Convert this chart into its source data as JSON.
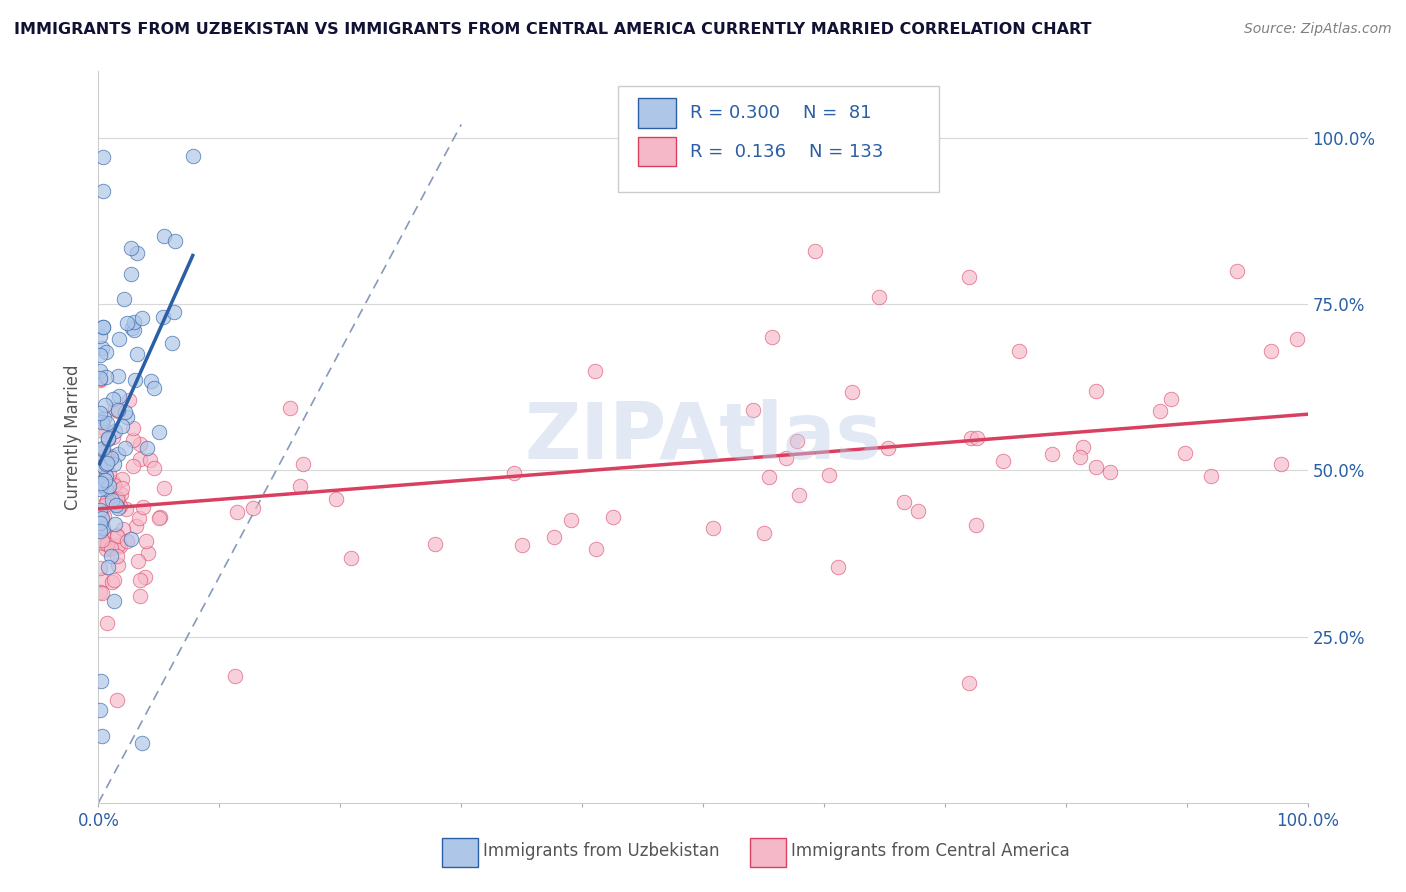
{
  "title": "IMMIGRANTS FROM UZBEKISTAN VS IMMIGRANTS FROM CENTRAL AMERICA CURRENTLY MARRIED CORRELATION CHART",
  "source": "Source: ZipAtlas.com",
  "ylabel": "Currently Married",
  "legend_labels": [
    "Immigrants from Uzbekistan",
    "Immigrants from Central America"
  ],
  "r_uzbekistan": 0.3,
  "n_uzbekistan": 81,
  "r_central": 0.136,
  "n_central": 133,
  "color_uzbekistan": "#aec6e8",
  "color_central": "#f5b8c8",
  "line_color_uzbekistan": "#2a5fa5",
  "line_color_central": "#d94060",
  "diagonal_color": "#8899bb",
  "watermark": "ZIPAtlas",
  "background_color": "#ffffff",
  "grid_color": "#d8d8d8",
  "title_color": "#111133",
  "axis_label_color": "#555555",
  "tick_color": "#2a5fa5",
  "ytick_labels": [
    "25.0%",
    "50.0%",
    "75.0%",
    "100.0%"
  ],
  "ytick_values": [
    0.25,
    0.5,
    0.75,
    1.0
  ],
  "xlim": [
    0.0,
    1.0
  ],
  "ylim": [
    0.0,
    1.1
  ],
  "seed": 42
}
